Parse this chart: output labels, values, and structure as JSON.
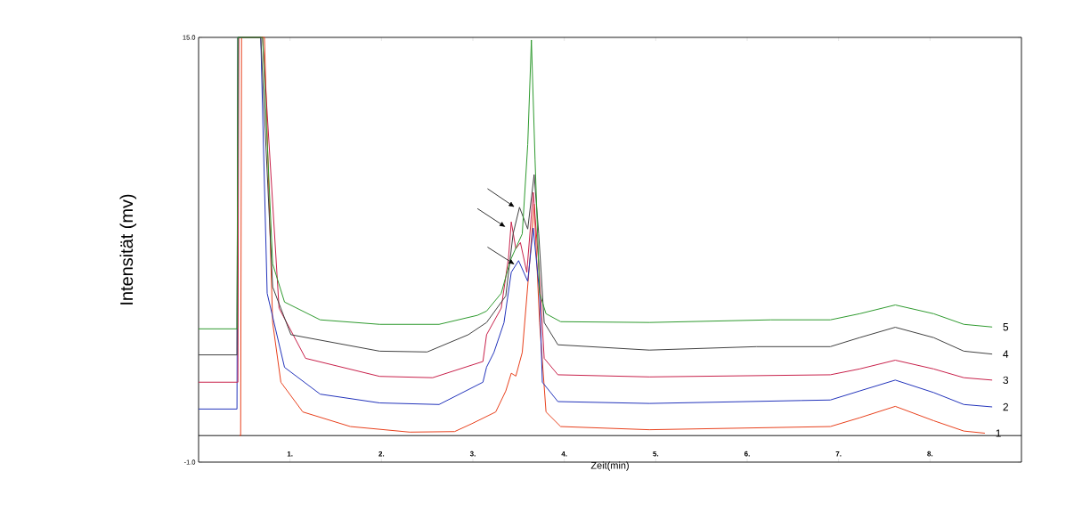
{
  "chart_data": {
    "type": "line",
    "xlabel": "Zeit(min)",
    "ylabel": "Intensität (mv)",
    "xlim": [
      0,
      9.0
    ],
    "ylim": [
      -1.0,
      15.0
    ],
    "xticks": [
      {
        "value": 1,
        "label": "1."
      },
      {
        "value": 2,
        "label": "2."
      },
      {
        "value": 3,
        "label": "3."
      },
      {
        "value": 4,
        "label": "4."
      },
      {
        "value": 5,
        "label": "5."
      },
      {
        "value": 6,
        "label": "6."
      },
      {
        "value": 7,
        "label": "7."
      },
      {
        "value": 8,
        "label": "8."
      }
    ],
    "yticks": [
      {
        "value": -1.0,
        "label": "-1.0"
      },
      {
        "value": 15.0,
        "label": "15.0"
      }
    ],
    "ref_lines": [
      {
        "axis": "y",
        "value": 0,
        "color": "#000000"
      }
    ],
    "legend": false,
    "grid": false,
    "series": [
      {
        "name": "1",
        "color": "#e8401c",
        "x": [
          0.45,
          0.46,
          0.47,
          0.72,
          0.81,
          0.9,
          1.14,
          1.66,
          2.31,
          2.8,
          2.99,
          3.25,
          3.36,
          3.42,
          3.47,
          3.54,
          3.62,
          3.67,
          3.73,
          3.8,
          3.96,
          4.93,
          6.91,
          7.23,
          7.62,
          8.04,
          8.37,
          8.6
        ],
        "values": [
          0,
          0,
          15,
          15,
          4.26,
          2.01,
          0.89,
          0.34,
          0.13,
          0.15,
          0.45,
          0.89,
          1.68,
          2.35,
          2.24,
          3.13,
          6.48,
          8.72,
          4.25,
          0.89,
          0.34,
          0.22,
          0.34,
          0.67,
          1.1,
          0.56,
          0.17,
          0.09
        ]
      },
      {
        "name": "2",
        "color": "#2233bb",
        "x": [
          0,
          0.42,
          0.43,
          0.68,
          0.75,
          0.94,
          1.33,
          1.98,
          2.63,
          3.11,
          3.15,
          3.23,
          3.34,
          3.42,
          3.5,
          3.6,
          3.66,
          3.73,
          3.76,
          3.93,
          4.93,
          6.59,
          6.91,
          7.23,
          7.62,
          8.04,
          8.37,
          8.68
        ],
        "values": [
          1.0,
          1.0,
          15,
          15,
          5.36,
          2.57,
          1.56,
          1.23,
          1.17,
          2.01,
          2.58,
          3.13,
          4.25,
          6.15,
          6.59,
          5.81,
          7.82,
          5.36,
          2.01,
          1.28,
          1.21,
          1.32,
          1.34,
          1.68,
          2.09,
          1.62,
          1.17,
          1.08
        ]
      },
      {
        "name": "3",
        "color": "#c8204a",
        "x": [
          0,
          0.43,
          0.44,
          0.7,
          0.88,
          1.17,
          1.98,
          2.56,
          3.11,
          3.15,
          3.31,
          3.39,
          3.42,
          3.47,
          3.52,
          3.59,
          3.66,
          3.72,
          3.78,
          3.93,
          4.93,
          6.91,
          7.23,
          7.62,
          8.04,
          8.37,
          8.68
        ],
        "values": [
          2.01,
          2.01,
          15,
          15,
          4.8,
          2.91,
          2.23,
          2.18,
          2.79,
          3.8,
          4.8,
          6.7,
          8.05,
          7.04,
          7.27,
          6.15,
          9.16,
          6.48,
          2.91,
          2.29,
          2.21,
          2.29,
          2.51,
          2.84,
          2.51,
          2.18,
          2.09
        ]
      },
      {
        "name": "4",
        "color": "#404040",
        "x": [
          0,
          0.42,
          0.43,
          0.68,
          0.81,
          1.01,
          1.98,
          2.5,
          2.95,
          3.15,
          3.36,
          3.44,
          3.51,
          3.6,
          3.67,
          3.72,
          3.78,
          3.93,
          4.93,
          6.1,
          6.91,
          7.23,
          7.62,
          8.04,
          8.37,
          8.68
        ],
        "values": [
          3.04,
          3.04,
          15,
          15,
          5.6,
          3.8,
          3.18,
          3.15,
          3.8,
          4.26,
          5.26,
          7.6,
          8.6,
          7.78,
          9.83,
          7.6,
          4.26,
          3.42,
          3.22,
          3.35,
          3.35,
          3.69,
          4.08,
          3.69,
          3.18,
          3.07
        ]
      },
      {
        "name": "5",
        "color": "#2e9a2e",
        "x": [
          0,
          0.42,
          0.43,
          0.7,
          0.81,
          0.94,
          1.33,
          1.98,
          2.63,
          3.05,
          3.15,
          3.31,
          3.41,
          3.54,
          3.6,
          3.64,
          3.68,
          3.73,
          3.8,
          3.96,
          4.93,
          6.26,
          6.91,
          7.23,
          7.62,
          8.04,
          8.37,
          8.68
        ],
        "values": [
          4.02,
          4.02,
          15,
          15,
          6.47,
          5.03,
          4.36,
          4.19,
          4.19,
          4.53,
          4.69,
          5.36,
          6.6,
          7.6,
          10.96,
          14.9,
          10.4,
          5.36,
          4.59,
          4.29,
          4.26,
          4.36,
          4.36,
          4.59,
          4.92,
          4.59,
          4.19,
          4.09
        ]
      }
    ]
  }
}
